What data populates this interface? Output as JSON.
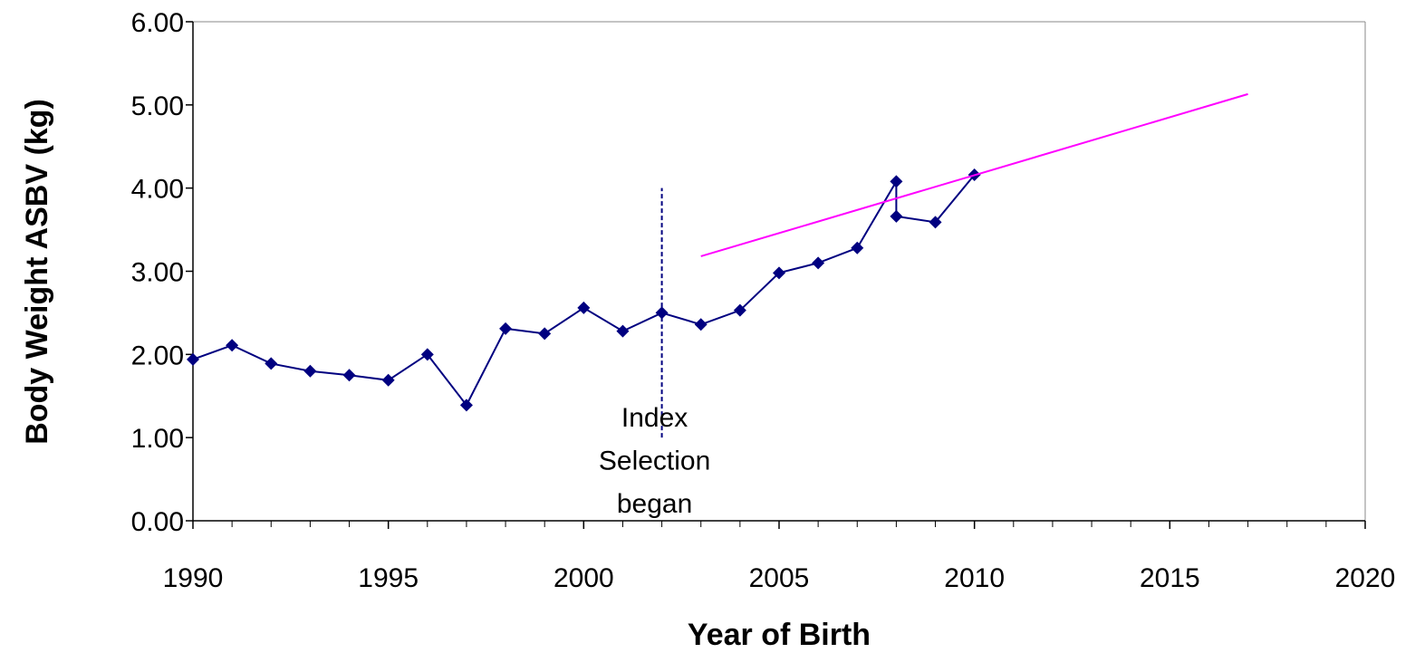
{
  "chart_data": {
    "type": "line",
    "x_label": "Year of Birth",
    "y_label": "Body Weight ASBV (kg)",
    "xlim": [
      1990,
      2020
    ],
    "xticks": [
      1990,
      1995,
      2000,
      2005,
      2010,
      2015,
      2020
    ],
    "ylim": [
      0,
      6
    ],
    "yticks": [
      {
        "value": 0,
        "label": "0.00"
      },
      {
        "value": 1,
        "label": "1.00"
      },
      {
        "value": 2,
        "label": "2.00"
      },
      {
        "value": 3,
        "label": "3.00"
      },
      {
        "value": 4,
        "label": "4.00"
      },
      {
        "value": 5,
        "label": "5.00"
      },
      {
        "value": 6,
        "label": "6.00"
      }
    ],
    "series": [
      {
        "color": "#000080",
        "marker": "diamond",
        "x": [
          1990,
          1991,
          1992,
          1993,
          1994,
          1995,
          1996,
          1997,
          1998,
          1999,
          2000,
          2001,
          2002,
          2003,
          2004,
          2005,
          2006,
          2007,
          2008,
          2008,
          2009,
          2010
        ],
        "values": [
          1.94,
          2.11,
          1.89,
          1.8,
          1.75,
          1.69,
          2.0,
          1.39,
          2.31,
          2.25,
          2.56,
          2.28,
          2.5,
          2.36,
          2.53,
          2.98,
          3.1,
          3.28,
          4.08,
          3.66,
          3.59,
          4.16
        ]
      },
      {
        "color": "#ff00ff",
        "marker": null,
        "x": [
          2003,
          2017
        ],
        "values": [
          3.18,
          5.13
        ]
      }
    ],
    "annotation": {
      "lines": [
        "Index",
        "Selection",
        "began"
      ],
      "x": 2002,
      "y_range": [
        1,
        4
      ],
      "color": "#000080"
    }
  }
}
